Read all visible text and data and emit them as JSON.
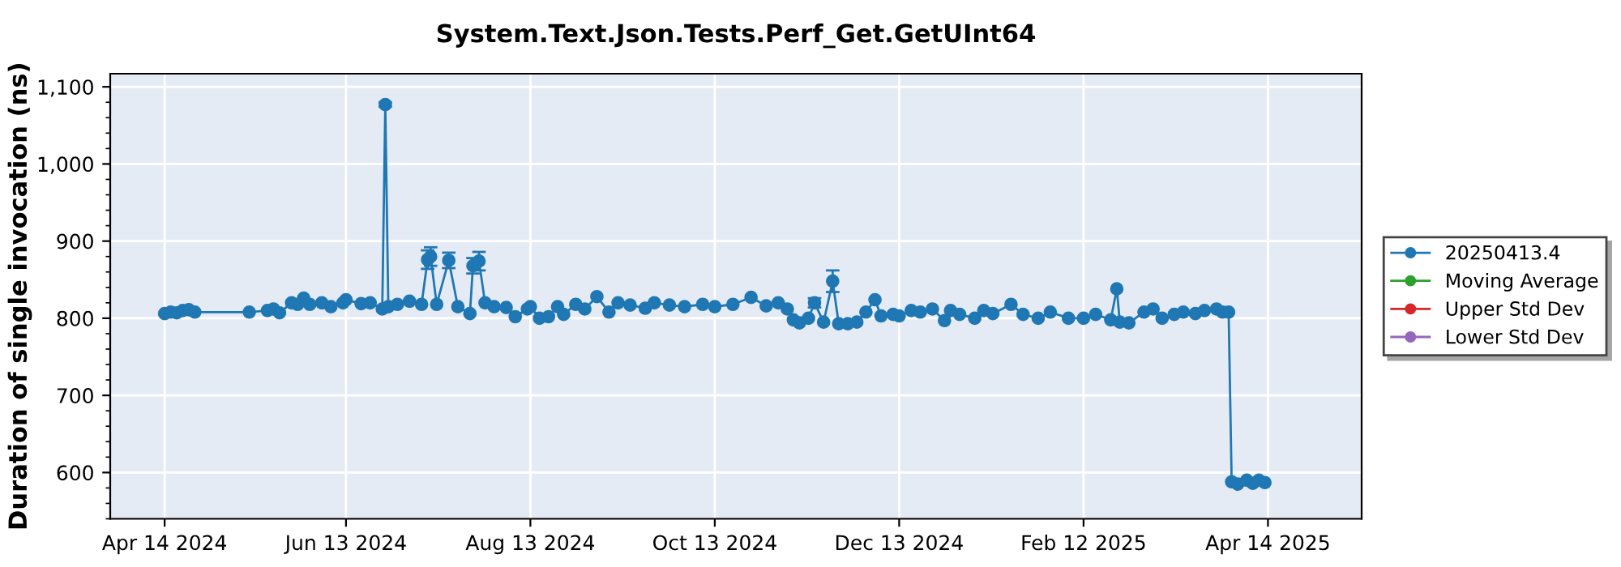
{
  "chart_data": {
    "type": "line",
    "title": "System.Text.Json.Tests.Perf_Get.GetUInt64",
    "ylabel": "Duration of single invocation (ns)",
    "xlim": [
      "2024-03-27",
      "2025-05-15"
    ],
    "xticks": [
      {
        "value": "2024-04-14",
        "label": "Apr 14 2024"
      },
      {
        "value": "2024-06-13",
        "label": "Jun 13 2024"
      },
      {
        "value": "2024-08-13",
        "label": "Aug 13 2024"
      },
      {
        "value": "2024-10-13",
        "label": "Oct 13 2024"
      },
      {
        "value": "2024-12-13",
        "label": "Dec 13 2024"
      },
      {
        "value": "2025-02-12",
        "label": "Feb 12 2025"
      },
      {
        "value": "2025-04-14",
        "label": "Apr 14 2025"
      }
    ],
    "ylim": [
      540,
      1117
    ],
    "yticks": [
      600,
      700,
      800,
      900,
      {
        "value": 1000,
        "label": "1,000"
      },
      {
        "value": 1100,
        "label": "1,100"
      }
    ],
    "grid": true,
    "legend": "right",
    "marker": "circle",
    "line_style": "solid",
    "series": [
      {
        "name": "20250413.4",
        "color": "#1f77b4",
        "x": [
          "2024-04-14",
          "2024-04-16",
          "2024-04-18",
          "2024-04-20",
          "2024-04-22",
          "2024-04-24",
          "2024-05-12",
          "2024-05-18",
          "2024-05-20",
          "2024-05-22",
          "2024-05-26",
          "2024-05-28",
          "2024-05-30",
          "2024-06-01",
          "2024-06-05",
          "2024-06-08",
          "2024-06-12",
          "2024-06-13",
          "2024-06-18",
          "2024-06-21",
          "2024-06-25",
          "2024-06-26",
          "2024-06-27",
          "2024-06-30",
          "2024-07-04",
          "2024-07-08",
          "2024-07-10",
          "2024-07-11",
          "2024-07-13",
          "2024-07-17",
          "2024-07-20",
          "2024-07-24",
          "2024-07-25",
          "2024-07-27",
          "2024-07-29",
          "2024-08-01",
          "2024-08-05",
          "2024-08-08",
          "2024-08-12",
          "2024-08-13",
          "2024-08-16",
          "2024-08-19",
          "2024-08-22",
          "2024-08-24",
          "2024-08-28",
          "2024-08-31",
          "2024-09-04",
          "2024-09-08",
          "2024-09-11",
          "2024-09-15",
          "2024-09-20",
          "2024-09-23",
          "2024-09-28",
          "2024-10-03",
          "2024-10-09",
          "2024-10-13",
          "2024-10-19",
          "2024-10-25",
          "2024-10-30",
          "2024-11-03",
          "2024-11-06",
          "2024-11-08",
          "2024-11-10",
          "2024-11-13",
          "2024-11-15",
          "2024-11-18",
          "2024-11-21",
          "2024-11-23",
          "2024-11-26",
          "2024-11-29",
          "2024-12-02",
          "2024-12-05",
          "2024-12-07",
          "2024-12-11",
          "2024-12-13",
          "2024-12-17",
          "2024-12-20",
          "2024-12-24",
          "2024-12-28",
          "2024-12-30",
          "2025-01-02",
          "2025-01-07",
          "2025-01-10",
          "2025-01-13",
          "2025-01-19",
          "2025-01-23",
          "2025-01-28",
          "2025-02-01",
          "2025-02-07",
          "2025-02-12",
          "2025-02-16",
          "2025-02-21",
          "2025-02-23",
          "2025-02-24",
          "2025-02-27",
          "2025-03-04",
          "2025-03-07",
          "2025-03-10",
          "2025-03-14",
          "2025-03-17",
          "2025-03-21",
          "2025-03-24",
          "2025-03-28",
          "2025-03-30",
          "2025-04-01",
          "2025-04-02",
          "2025-04-04",
          "2025-04-07",
          "2025-04-09",
          "2025-04-11",
          "2025-04-13"
        ],
        "values": [
          806,
          808,
          807,
          810,
          811,
          808,
          808,
          810,
          812,
          807,
          820,
          818,
          826,
          818,
          820,
          815,
          820,
          824,
          819,
          820,
          812,
          1077,
          815,
          818,
          822,
          818,
          876,
          880,
          818,
          875,
          815,
          806,
          868,
          874,
          820,
          815,
          814,
          802,
          812,
          815,
          800,
          802,
          815,
          805,
          818,
          812,
          828,
          808,
          820,
          817,
          813,
          820,
          817,
          815,
          818,
          815,
          818,
          827,
          816,
          820,
          812,
          798,
          794,
          800,
          820,
          795,
          848,
          793,
          793,
          795,
          808,
          824,
          803,
          805,
          803,
          810,
          808,
          812,
          797,
          810,
          805,
          800,
          810,
          806,
          818,
          805,
          800,
          808,
          800,
          800,
          805,
          798,
          838,
          795,
          794,
          808,
          812,
          800,
          805,
          808,
          806,
          810,
          812,
          808,
          808,
          588,
          585,
          590,
          586,
          590,
          587
        ],
        "errors": [
          null,
          null,
          null,
          null,
          null,
          null,
          null,
          null,
          null,
          null,
          null,
          null,
          null,
          null,
          null,
          null,
          null,
          null,
          null,
          null,
          null,
          3,
          null,
          null,
          null,
          null,
          12,
          12,
          null,
          10,
          null,
          null,
          10,
          12,
          null,
          null,
          null,
          null,
          null,
          null,
          null,
          null,
          null,
          null,
          null,
          null,
          null,
          null,
          null,
          null,
          null,
          null,
          null,
          null,
          null,
          null,
          null,
          null,
          null,
          null,
          null,
          null,
          null,
          null,
          6,
          null,
          14,
          null,
          null,
          null,
          null,
          null,
          null,
          null,
          null,
          null,
          null,
          null,
          null,
          null,
          null,
          null,
          null,
          null,
          null,
          null,
          null,
          null,
          null,
          null,
          null,
          null,
          null,
          null,
          null,
          null,
          null,
          null,
          null,
          null,
          null,
          null,
          null,
          null,
          null,
          null,
          null,
          null,
          null,
          null,
          null
        ]
      },
      {
        "name": "Moving Average",
        "color": "#2ca02c"
      },
      {
        "name": "Upper Std Dev",
        "color": "#d62728"
      },
      {
        "name": "Lower Std Dev",
        "color": "#9467bd"
      }
    ]
  }
}
